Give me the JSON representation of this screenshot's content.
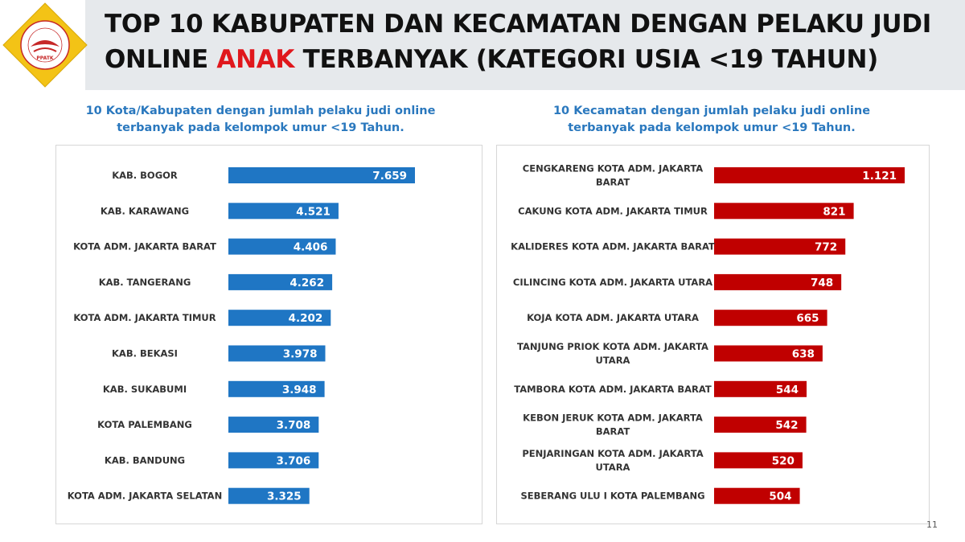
{
  "title": {
    "line1": "TOP 10 KABUPATEN DAN KECAMATAN DENGAN PELAKU JUDI",
    "line2_before": "ONLINE ",
    "line2_highlight": "ANAK",
    "line2_after": " TERBANYAK (KATEGORI USIA <19 TAHUN)"
  },
  "logo": {
    "ring_text": "PUSAT PELAPORAN DAN ANALISIS TRANSAKSI KEUANGAN",
    "center_text": "PPATK"
  },
  "colors": {
    "left_bar": "#1f76c4",
    "right_bar": "#c00000",
    "title_highlight": "#e0171c",
    "subtitle": "#2a78be"
  },
  "page_number": "11",
  "chart_data": [
    {
      "type": "bar",
      "orientation": "horizontal",
      "title": "10 Kota/Kabupaten dengan jumlah pelaku judi online terbanyak pada kelompok umur <19 Tahun.",
      "title_lines": [
        "10 Kota/Kabupaten dengan jumlah pelaku judi online",
        "terbanyak pada kelompok umur <19 Tahun."
      ],
      "categories": [
        [
          "KAB. BOGOR"
        ],
        [
          "KAB. KARAWANG"
        ],
        [
          "KOTA ADM. JAKARTA BARAT"
        ],
        [
          "KAB. TANGERANG"
        ],
        [
          "KOTA ADM. JAKARTA TIMUR"
        ],
        [
          "KAB. BEKASI"
        ],
        [
          "KAB. SUKABUMI"
        ],
        [
          "KOTA PALEMBANG"
        ],
        [
          "KAB. BANDUNG"
        ],
        [
          "KOTA ADM. JAKARTA SELATAN"
        ]
      ],
      "values": [
        7659,
        4521,
        4406,
        4262,
        4202,
        3978,
        3948,
        3708,
        3706,
        3325
      ],
      "value_labels": [
        "7.659",
        "4.521",
        "4.406",
        "4.262",
        "4.202",
        "3.978",
        "3.948",
        "3.708",
        "3.706",
        "3.325"
      ],
      "xlim": [
        0,
        7659
      ],
      "grid": false,
      "axes_visible": false
    },
    {
      "type": "bar",
      "orientation": "horizontal",
      "title": "10 Kecamatan dengan jumlah pelaku judi online terbanyak pada kelompok umur <19 Tahun.",
      "title_lines": [
        "10 Kecamatan dengan jumlah pelaku judi online",
        "terbanyak pada kelompok umur <19 Tahun."
      ],
      "categories": [
        [
          "CENGKARENG KOTA ADM. JAKARTA",
          "BARAT"
        ],
        [
          "CAKUNG KOTA ADM. JAKARTA TIMUR"
        ],
        [
          "KALIDERES KOTA ADM. JAKARTA BARAT"
        ],
        [
          "CILINCING KOTA ADM. JAKARTA UTARA"
        ],
        [
          "KOJA KOTA ADM. JAKARTA UTARA"
        ],
        [
          "TANJUNG PRIOK KOTA ADM. JAKARTA",
          "UTARA"
        ],
        [
          "TAMBORA KOTA ADM. JAKARTA BARAT"
        ],
        [
          "KEBON JERUK KOTA ADM. JAKARTA",
          "BARAT"
        ],
        [
          "PENJARINGAN KOTA ADM. JAKARTA",
          "UTARA"
        ],
        [
          "SEBERANG ULU I KOTA PALEMBANG"
        ]
      ],
      "values": [
        1121,
        821,
        772,
        748,
        665,
        638,
        544,
        542,
        520,
        504
      ],
      "value_labels": [
        "1.121",
        "821",
        "772",
        "748",
        "665",
        "638",
        "544",
        "542",
        "520",
        "504"
      ],
      "xlim": [
        0,
        1121
      ],
      "grid": false,
      "axes_visible": false
    }
  ]
}
